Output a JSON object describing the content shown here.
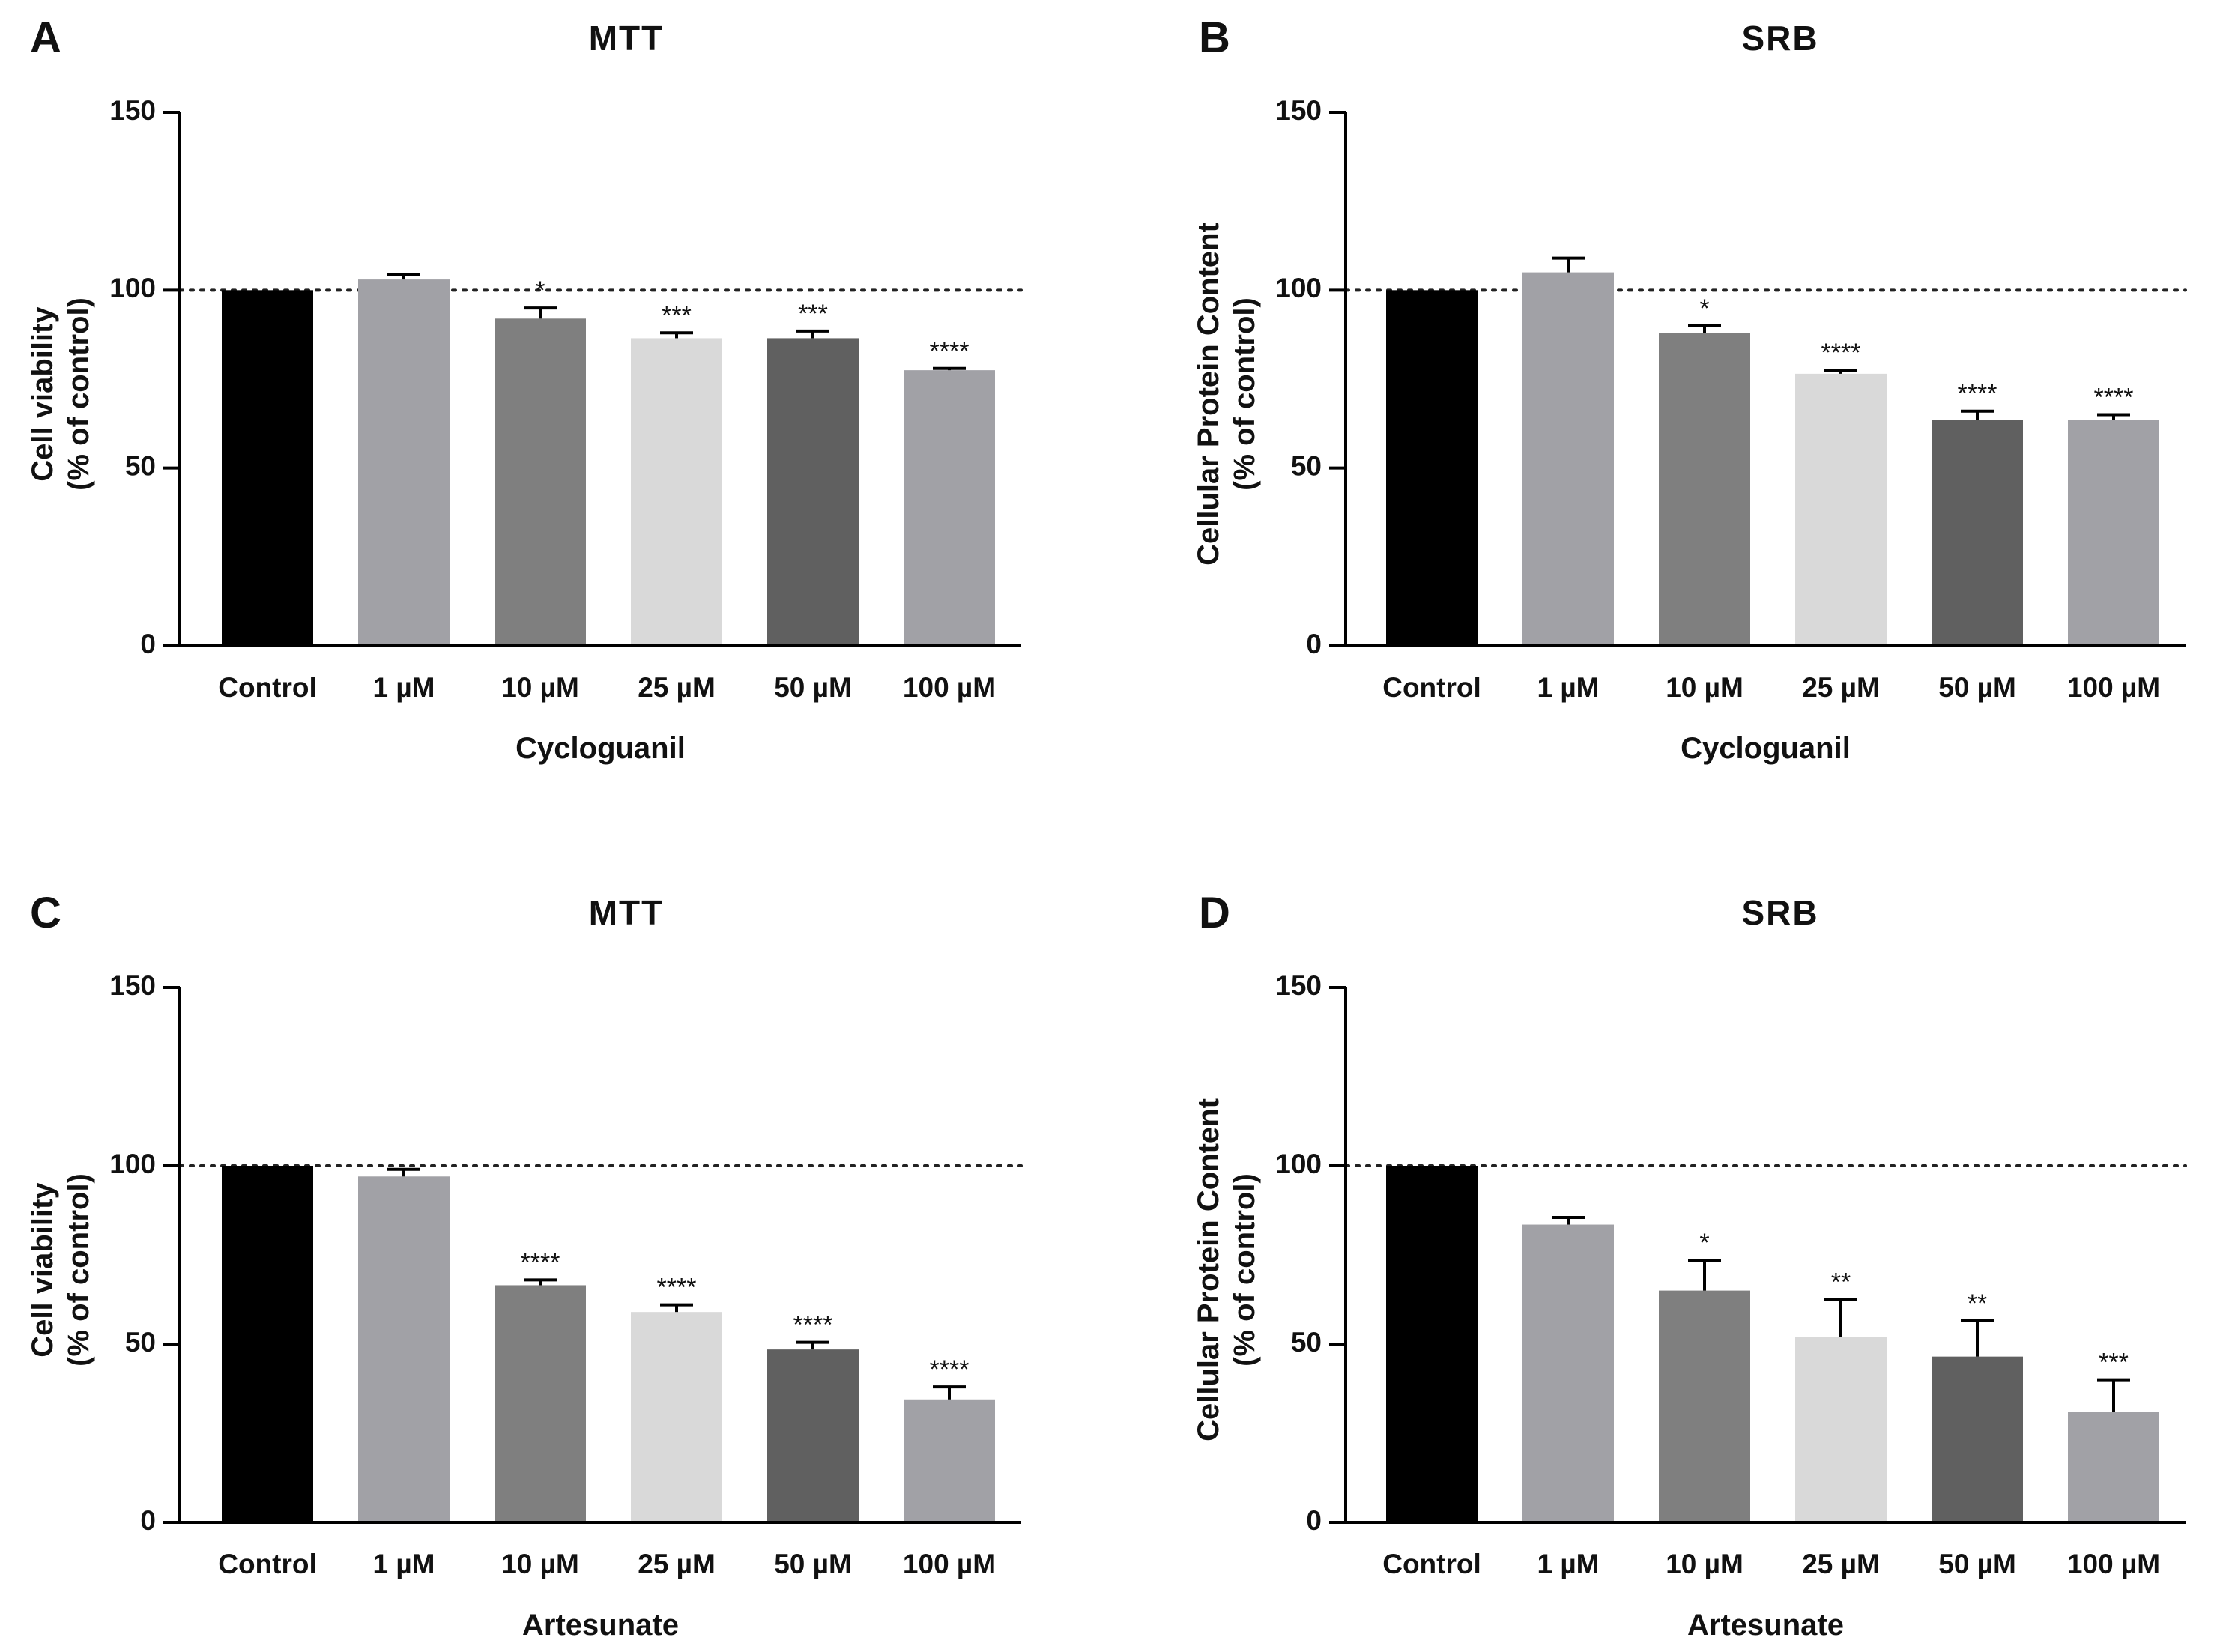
{
  "chart_data": [
    {
      "panel": "A",
      "type": "bar",
      "title": "MTT",
      "categories": [
        "Control",
        "1 µM",
        "10 µM",
        "25 µM",
        "50 µM",
        "100 µM"
      ],
      "values": [
        100,
        103,
        92,
        86.5,
        86.5,
        77.5
      ],
      "errors": [
        0,
        1.5,
        3,
        1.5,
        2,
        0.5
      ],
      "significance": [
        "",
        "",
        "*",
        "***",
        "***",
        "****"
      ],
      "colors": [
        "#000000",
        "#a1a1a6",
        "#7f7f7f",
        "#d9d9d9",
        "#606060",
        "#a1a1a6"
      ],
      "xlabel": "Cycloguanil",
      "ylabel": [
        "Cell viability",
        "(% of control)"
      ],
      "yticks": [
        "0",
        "50",
        "100",
        "150"
      ],
      "ylim": [
        0,
        150
      ],
      "reference_line": 100,
      "grid": false
    },
    {
      "panel": "B",
      "type": "bar",
      "title": "SRB",
      "categories": [
        "Control",
        "1 µM",
        "10 µM",
        "25 µM",
        "50 µM",
        "100 µM"
      ],
      "values": [
        100,
        105,
        88,
        76.5,
        63.5,
        63.5
      ],
      "errors": [
        0,
        4,
        2,
        1,
        2.5,
        1.5
      ],
      "significance": [
        "",
        "",
        "*",
        "****",
        "****",
        "****"
      ],
      "colors": [
        "#000000",
        "#a1a1a6",
        "#7f7f7f",
        "#d9d9d9",
        "#606060",
        "#a1a1a6"
      ],
      "xlabel": "Cycloguanil",
      "ylabel": [
        "Cellular Protein Content",
        "(% of control)"
      ],
      "yticks": [
        "0",
        "50",
        "100",
        "150"
      ],
      "ylim": [
        0,
        150
      ],
      "reference_line": 100,
      "grid": false
    },
    {
      "panel": "C",
      "type": "bar",
      "title": "MTT",
      "categories": [
        "Control",
        "1 µM",
        "10 µM",
        "25 µM",
        "50 µM",
        "100 µM"
      ],
      "values": [
        100,
        97,
        66.5,
        59,
        48.5,
        34.5
      ],
      "errors": [
        0,
        2,
        1.5,
        2,
        2,
        3.5
      ],
      "significance": [
        "",
        "",
        "****",
        "****",
        "****",
        "****"
      ],
      "colors": [
        "#000000",
        "#a1a1a6",
        "#7f7f7f",
        "#d9d9d9",
        "#606060",
        "#a1a1a6"
      ],
      "xlabel": "Artesunate",
      "ylabel": [
        "Cell viability",
        "(% of control)"
      ],
      "yticks": [
        "0",
        "50",
        "100",
        "150"
      ],
      "ylim": [
        0,
        150
      ],
      "reference_line": 100,
      "grid": false
    },
    {
      "panel": "D",
      "type": "bar",
      "title": "SRB",
      "categories": [
        "Control",
        "1 µM",
        "10 µM",
        "25 µM",
        "50 µM",
        "100 µM"
      ],
      "values": [
        100,
        83.5,
        65,
        52,
        46.5,
        31
      ],
      "errors": [
        0,
        2,
        8.5,
        10.5,
        10,
        9
      ],
      "significance": [
        "",
        "",
        "*",
        "**",
        "**",
        "***"
      ],
      "colors": [
        "#000000",
        "#a1a1a6",
        "#7f7f7f",
        "#d9d9d9",
        "#606060",
        "#a1a1a6"
      ],
      "xlabel": "Artesunate",
      "ylabel": [
        "Cellular Protein Content",
        "(% of control)"
      ],
      "yticks": [
        "0",
        "50",
        "100",
        "150"
      ],
      "ylim": [
        0,
        150
      ],
      "reference_line": 100,
      "grid": false
    }
  ]
}
